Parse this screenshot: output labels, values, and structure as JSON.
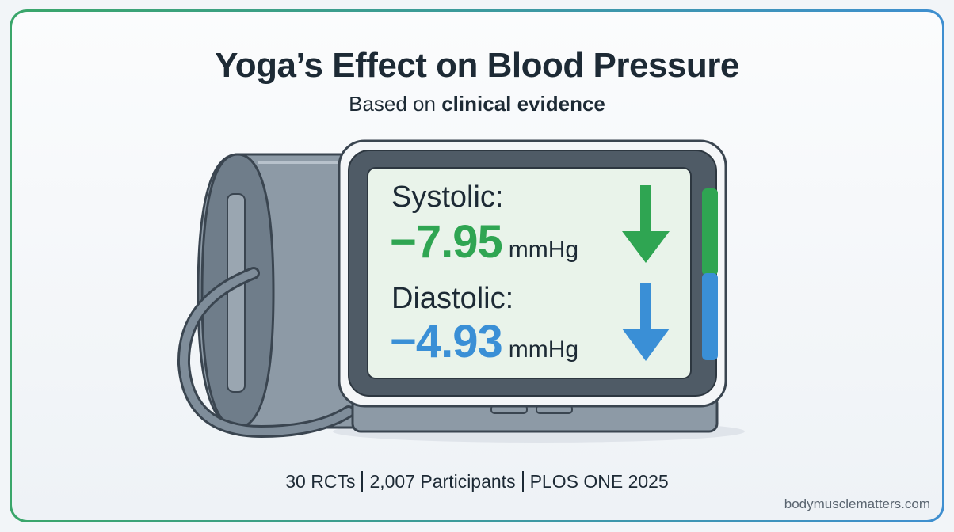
{
  "title": "Yoga’s Effect on Blood Pressure",
  "subtitle": {
    "prefix": "Based on",
    "emphasis": "clinical evidence"
  },
  "readings": [
    {
      "label": "Systolic:",
      "value": "−7.95",
      "unit": "mmHg",
      "color": "#2fa552",
      "icon": "arrow-down-icon"
    },
    {
      "label": "Diastolic:",
      "value": "−4.93",
      "unit": "mmHg",
      "color": "#3a8fd6",
      "icon": "arrow-down-icon"
    }
  ],
  "footer": {
    "items": [
      "30 RCTs",
      "2,007 Participants",
      "PLOS ONE 2025"
    ]
  },
  "watermark": "bodymusclematters.com",
  "colors": {
    "green": "#2fa552",
    "blue": "#3a8fd6",
    "text": "#1d2a35"
  }
}
